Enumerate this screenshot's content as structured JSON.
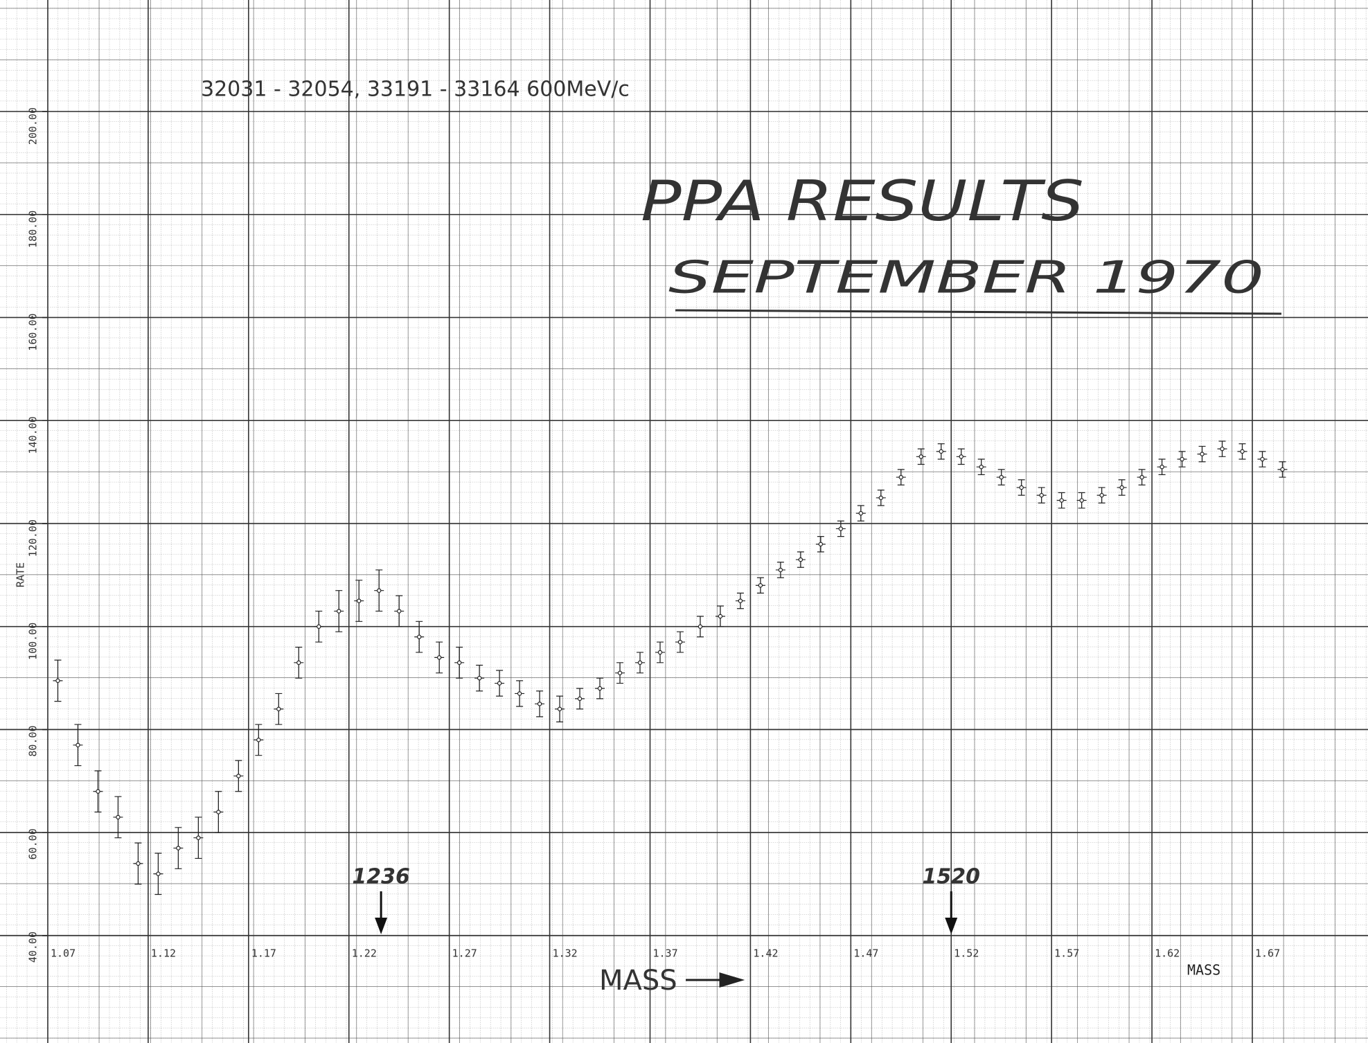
{
  "chart_data": {
    "type": "errorbar",
    "header": "32031 - 32054, 33191 - 33164 600MeV/c",
    "title": "PPA RESULTS",
    "subtitle": "SEPTEMBER 1970",
    "x_label": "MASS",
    "x_label_small": "MASS",
    "y_label": "RATE",
    "annotations": [
      {
        "text": "1236",
        "x": 1.236
      },
      {
        "text": "1520",
        "x": 1.52
      }
    ],
    "color": "#222222",
    "xlim": [
      1.07,
      1.72
    ],
    "ylim": [
      40,
      200
    ],
    "xticks": [
      1.07,
      1.12,
      1.17,
      1.22,
      1.27,
      1.32,
      1.37,
      1.42,
      1.47,
      1.52,
      1.57,
      1.62,
      1.67
    ],
    "yticks": [
      {
        "value": 40,
        "label": "40.00"
      },
      {
        "value": 60,
        "label": "60.00"
      },
      {
        "value": 80,
        "label": "80.00"
      },
      {
        "value": 100,
        "label": "100.00"
      },
      {
        "value": 120,
        "label": "120.00"
      },
      {
        "value": 140,
        "label": "140.00"
      },
      {
        "value": 160,
        "label": "160.00"
      },
      {
        "value": 180,
        "label": "180.00"
      },
      {
        "value": 200,
        "label": "200.00"
      }
    ],
    "grid": true,
    "x": [
      1.075,
      1.085,
      1.095,
      1.105,
      1.115,
      1.125,
      1.135,
      1.145,
      1.155,
      1.165,
      1.175,
      1.185,
      1.195,
      1.205,
      1.215,
      1.225,
      1.235,
      1.245,
      1.255,
      1.265,
      1.275,
      1.285,
      1.295,
      1.305,
      1.315,
      1.325,
      1.335,
      1.345,
      1.355,
      1.365,
      1.375,
      1.385,
      1.395,
      1.405,
      1.415,
      1.425,
      1.435,
      1.445,
      1.455,
      1.465,
      1.475,
      1.485,
      1.495,
      1.505,
      1.515,
      1.525,
      1.535,
      1.545,
      1.555,
      1.565,
      1.575,
      1.585,
      1.595,
      1.605,
      1.615,
      1.625,
      1.635,
      1.645,
      1.655,
      1.665,
      1.675,
      1.685
    ],
    "values": [
      89.5,
      77,
      68,
      63,
      54,
      52,
      57,
      59,
      64,
      71,
      78,
      84,
      93,
      100,
      103,
      105,
      107,
      103,
      98,
      94,
      93,
      90,
      89,
      87,
      85,
      84,
      86,
      88,
      91,
      93,
      95,
      97,
      100,
      102,
      105,
      108,
      111,
      113,
      116,
      119,
      122,
      125,
      129,
      133,
      134,
      133,
      131,
      129,
      127,
      125.5,
      124.5,
      124.5,
      125.5,
      127,
      129,
      131,
      132.5,
      133.5,
      134.5,
      134,
      132.5,
      130.5
    ],
    "errors": [
      4,
      4,
      4,
      4,
      4,
      4,
      4,
      4,
      4,
      3,
      3,
      3,
      3,
      3,
      4,
      4,
      4,
      3,
      3,
      3,
      3,
      2.5,
      2.5,
      2.5,
      2.5,
      2.5,
      2,
      2,
      2,
      2,
      2,
      2,
      2,
      2,
      1.5,
      1.5,
      1.5,
      1.5,
      1.5,
      1.5,
      1.5,
      1.5,
      1.5,
      1.5,
      1.5,
      1.5,
      1.5,
      1.5,
      1.5,
      1.5,
      1.5,
      1.5,
      1.5,
      1.5,
      1.5,
      1.5,
      1.5,
      1.5,
      1.5,
      1.5,
      1.5,
      1.5
    ]
  }
}
